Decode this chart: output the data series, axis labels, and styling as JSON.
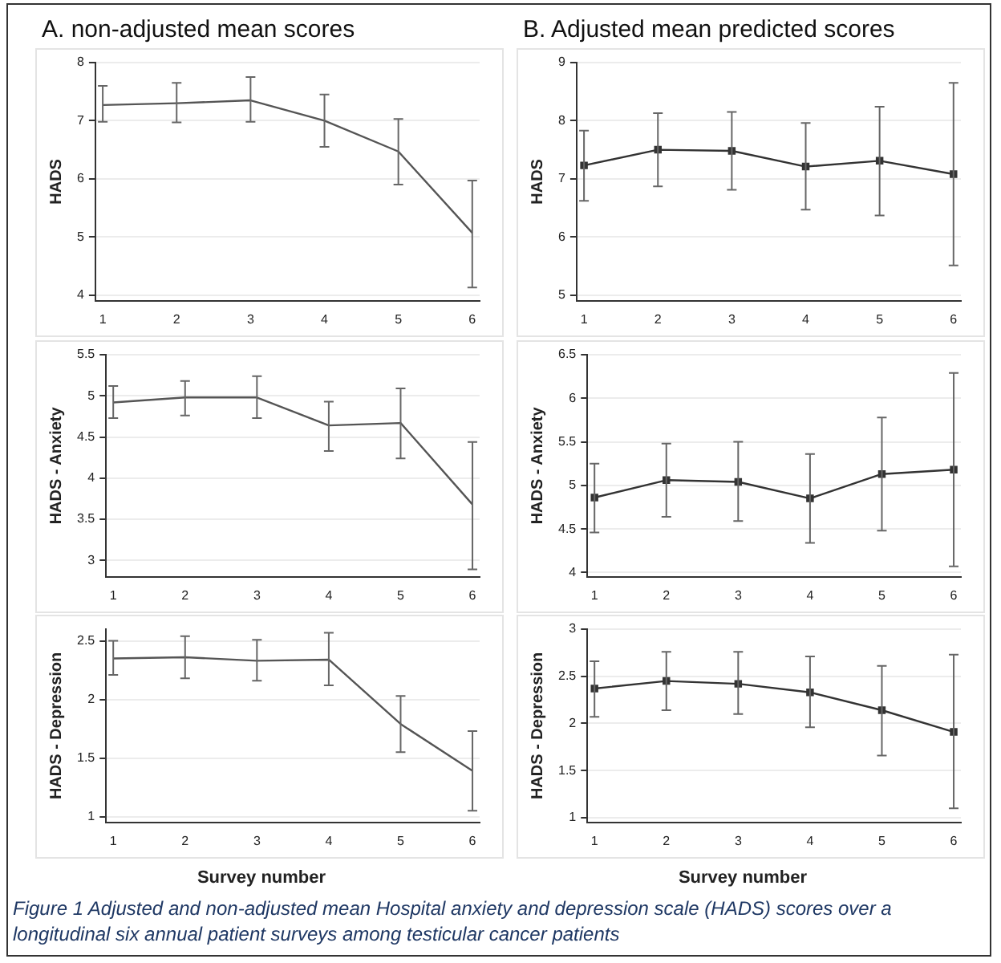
{
  "chart_data": [
    {
      "type": "line",
      "title": "A. non-adjusted mean scores",
      "ylabel": "HADS",
      "x": [
        1,
        2,
        3,
        4,
        5,
        6
      ],
      "xlim": [
        0.9,
        6.1
      ],
      "xticks": [
        1,
        2,
        3,
        4,
        5,
        6
      ],
      "ylim": [
        3.9,
        8
      ],
      "yticks": [
        4,
        5,
        6,
        7,
        8
      ],
      "grid": "y",
      "marker": "none",
      "line_style": "solid",
      "series": [
        {
          "color": "#555555",
          "values": [
            7.27,
            7.3,
            7.35,
            7.0,
            6.47,
            5.07
          ],
          "errors": [
            [
              6.98,
              7.6
            ],
            [
              6.97,
              7.65
            ],
            [
              6.98,
              7.75
            ],
            [
              6.55,
              7.45
            ],
            [
              5.9,
              7.03
            ],
            [
              4.13,
              5.97
            ]
          ]
        }
      ]
    },
    {
      "type": "line",
      "title": "B. Adjusted mean predicted scores",
      "ylabel": "HADS",
      "x": [
        1,
        2,
        3,
        4,
        5,
        6
      ],
      "xlim": [
        0.9,
        6.1
      ],
      "xticks": [
        1,
        2,
        3,
        4,
        5,
        6
      ],
      "ylim": [
        4.9,
        9
      ],
      "yticks": [
        5,
        6,
        7,
        8,
        9
      ],
      "grid": "y",
      "marker": "square",
      "line_style": "solid",
      "series": [
        {
          "color": "#333333",
          "values": [
            7.23,
            7.5,
            7.48,
            7.21,
            7.31,
            7.08
          ],
          "errors": [
            [
              6.62,
              7.83
            ],
            [
              6.87,
              8.13
            ],
            [
              6.81,
              8.15
            ],
            [
              6.47,
              7.96
            ],
            [
              6.37,
              8.24
            ],
            [
              5.51,
              8.65
            ]
          ]
        }
      ]
    },
    {
      "type": "line",
      "ylabel": "HADS - Anxiety",
      "x": [
        1,
        2,
        3,
        4,
        5,
        6
      ],
      "xlim": [
        0.9,
        6.1
      ],
      "xticks": [
        1,
        2,
        3,
        4,
        5,
        6
      ],
      "ylim": [
        2.8,
        5.5
      ],
      "yticks": [
        3,
        3.5,
        4,
        4.5,
        5,
        5.5
      ],
      "grid": "y",
      "marker": "none",
      "line_style": "solid",
      "series": [
        {
          "color": "#555555",
          "values": [
            4.92,
            4.98,
            4.98,
            4.64,
            4.67,
            3.68
          ],
          "errors": [
            [
              4.73,
              5.12
            ],
            [
              4.76,
              5.18
            ],
            [
              4.73,
              5.24
            ],
            [
              4.33,
              4.93
            ],
            [
              4.24,
              5.09
            ],
            [
              2.89,
              4.44
            ]
          ]
        }
      ]
    },
    {
      "type": "line",
      "ylabel": "HADS - Anxiety",
      "x": [
        1,
        2,
        3,
        4,
        5,
        6
      ],
      "xlim": [
        0.9,
        6.1
      ],
      "xticks": [
        1,
        2,
        3,
        4,
        5,
        6
      ],
      "ylim": [
        3.95,
        6.5
      ],
      "yticks": [
        4,
        4.5,
        5,
        5.5,
        6,
        6.5
      ],
      "grid": "y",
      "marker": "square",
      "line_style": "solid",
      "series": [
        {
          "color": "#333333",
          "values": [
            4.86,
            5.06,
            5.04,
            4.85,
            5.13,
            5.18
          ],
          "errors": [
            [
              4.46,
              5.25
            ],
            [
              4.64,
              5.48
            ],
            [
              4.59,
              5.5
            ],
            [
              4.34,
              5.36
            ],
            [
              4.48,
              5.78
            ],
            [
              4.07,
              6.29
            ]
          ]
        }
      ]
    },
    {
      "type": "line",
      "xlabel": "Survey number",
      "ylabel": "HADS - Depression",
      "x": [
        1,
        2,
        3,
        4,
        5,
        6
      ],
      "xlim": [
        0.9,
        6.1
      ],
      "xticks": [
        1,
        2,
        3,
        4,
        5,
        6
      ],
      "ylim": [
        0.95,
        2.6
      ],
      "yticks": [
        1,
        1.5,
        2,
        2.5
      ],
      "grid": "y",
      "marker": "none",
      "line_style": "solid",
      "series": [
        {
          "color": "#555555",
          "values": [
            2.35,
            2.36,
            2.33,
            2.34,
            1.79,
            1.39
          ],
          "errors": [
            [
              2.21,
              2.5
            ],
            [
              2.18,
              2.54
            ],
            [
              2.16,
              2.51
            ],
            [
              2.12,
              2.57
            ],
            [
              1.55,
              2.03
            ],
            [
              1.05,
              1.73
            ]
          ]
        }
      ]
    },
    {
      "type": "line",
      "xlabel": "Survey number",
      "ylabel": "HADS - Depression",
      "x": [
        1,
        2,
        3,
        4,
        5,
        6
      ],
      "xlim": [
        0.9,
        6.1
      ],
      "xticks": [
        1,
        2,
        3,
        4,
        5,
        6
      ],
      "ylim": [
        0.95,
        3
      ],
      "yticks": [
        1,
        1.5,
        2,
        2.5,
        3
      ],
      "grid": "y",
      "marker": "square",
      "line_style": "solid",
      "annotations": [
        "Figure 1 Adjusted and non-adjusted mean Hospital anxiety and depression scale (HADS) scores over a longitudinal six annual patient surveys among testicular cancer patients"
      ],
      "series": [
        {
          "color": "#333333",
          "values": [
            2.37,
            2.45,
            2.42,
            2.33,
            2.14,
            1.91
          ],
          "errors": [
            [
              2.07,
              2.66
            ],
            [
              2.14,
              2.76
            ],
            [
              2.1,
              2.76
            ],
            [
              1.96,
              2.71
            ],
            [
              1.66,
              2.61
            ],
            [
              1.1,
              2.73
            ]
          ]
        }
      ]
    }
  ]
}
